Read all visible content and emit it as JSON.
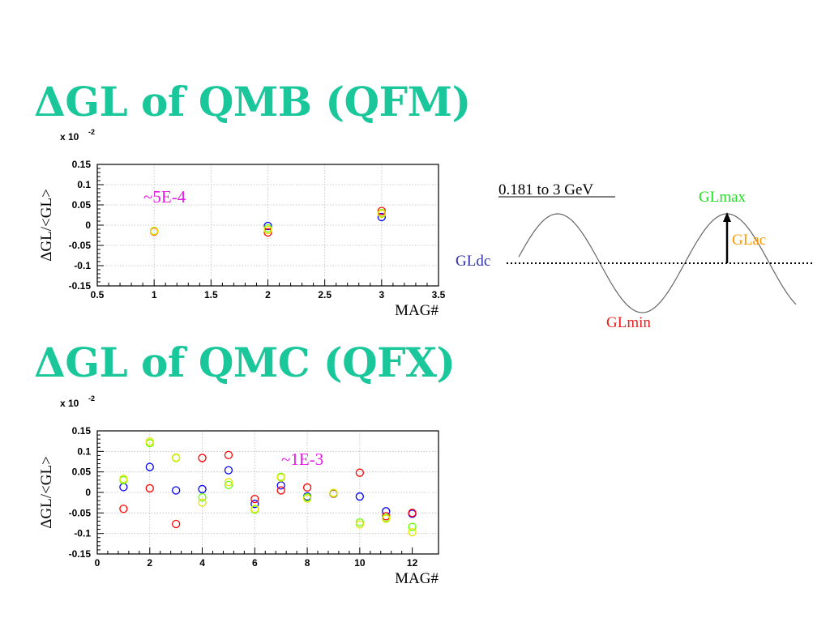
{
  "titles": {
    "top": "ΔGL of QMB (QFM)",
    "bottom": "ΔGL of QMC (QFX)"
  },
  "chart_data": [
    {
      "type": "scatter",
      "multiplier_label": "x 10",
      "multiplier_exponent": "-2",
      "xlabel": "MAG#",
      "ylabel": "ΔGL/<GL>",
      "xlim": [
        0.5,
        3.5
      ],
      "ylim": [
        -0.15,
        0.15
      ],
      "xticks": [
        0.5,
        1,
        1.5,
        2,
        2.5,
        3,
        3.5
      ],
      "xtick_labels": [
        "0.5",
        "1",
        "1.5",
        "2",
        "2.5",
        "3",
        "3.5"
      ],
      "yticks": [
        0.15,
        0.1,
        0.05,
        0,
        -0.05,
        -0.1,
        -0.15
      ],
      "ytick_labels": [
        "0.15",
        "0.1",
        "0.05",
        "0",
        "-0.05",
        "-0.1",
        "-0.15"
      ],
      "grid": true,
      "annotation": "~5E-4",
      "series": [
        {
          "color": "#0000ff",
          "points": [
            [
              1,
              -0.015
            ],
            [
              2,
              -0.002
            ],
            [
              3,
              0.02
            ]
          ]
        },
        {
          "color": "#ff0000",
          "points": [
            [
              1,
              -0.016
            ],
            [
              2,
              -0.018
            ],
            [
              3,
              0.035
            ]
          ]
        },
        {
          "color": "#66ff00",
          "points": [
            [
              1,
              -0.014
            ],
            [
              2,
              -0.008
            ],
            [
              3,
              0.03
            ]
          ]
        },
        {
          "color": "#ffd700",
          "points": [
            [
              1,
              -0.015
            ],
            [
              2,
              -0.012
            ],
            [
              3,
              0.028
            ]
          ]
        }
      ]
    },
    {
      "type": "scatter",
      "multiplier_label": "x 10",
      "multiplier_exponent": "-2",
      "xlabel": "MAG#",
      "ylabel": "ΔGL/<GL>",
      "xlim": [
        0,
        13
      ],
      "ylim": [
        -0.15,
        0.15
      ],
      "xticks": [
        0,
        2,
        4,
        6,
        8,
        10,
        12
      ],
      "xtick_labels": [
        "0",
        "2",
        "4",
        "6",
        "8",
        "10",
        "12"
      ],
      "yticks": [
        0.15,
        0.1,
        0.05,
        0,
        -0.05,
        -0.1,
        -0.15
      ],
      "ytick_labels": [
        "0.15",
        "0.1",
        "0.05",
        "0",
        "-0.05",
        "-0.1",
        "-0.15"
      ],
      "grid": true,
      "annotation": "~1E-3",
      "series": [
        {
          "color": "#0000ff",
          "points": [
            [
              1,
              0.013
            ],
            [
              2,
              0.062
            ],
            [
              3,
              0.005
            ],
            [
              4,
              0.008
            ],
            [
              5,
              0.054
            ],
            [
              6,
              -0.028
            ],
            [
              7,
              0.017
            ],
            [
              8,
              -0.01
            ],
            [
              9,
              -0.003
            ],
            [
              10,
              -0.01
            ],
            [
              11,
              -0.046
            ],
            [
              12,
              -0.052
            ]
          ]
        },
        {
          "color": "#ff0000",
          "points": [
            [
              1,
              -0.04
            ],
            [
              2,
              0.01
            ],
            [
              3,
              -0.077
            ],
            [
              4,
              0.084
            ],
            [
              5,
              0.091
            ],
            [
              6,
              -0.016
            ],
            [
              7,
              0.005
            ],
            [
              8,
              0.012
            ],
            [
              9,
              -0.003
            ],
            [
              10,
              0.048
            ],
            [
              11,
              -0.058
            ],
            [
              12,
              -0.05
            ]
          ]
        },
        {
          "color": "#66ff00",
          "points": [
            [
              1,
              0.03
            ],
            [
              2,
              0.12
            ],
            [
              3,
              0.084
            ],
            [
              4,
              -0.012
            ],
            [
              5,
              0.018
            ],
            [
              6,
              -0.042
            ],
            [
              7,
              0.038
            ],
            [
              8,
              -0.012
            ],
            [
              9,
              -0.002
            ],
            [
              10,
              -0.073
            ],
            [
              11,
              -0.062
            ],
            [
              12,
              -0.084
            ]
          ]
        },
        {
          "color": "#e6e600",
          "points": [
            [
              1,
              0.033
            ],
            [
              2,
              0.124
            ],
            [
              3,
              0.085
            ],
            [
              4,
              -0.025
            ],
            [
              5,
              0.025
            ],
            [
              6,
              -0.04
            ],
            [
              7,
              0.036
            ],
            [
              8,
              -0.015
            ],
            [
              9,
              -0.001
            ],
            [
              10,
              -0.078
            ],
            [
              11,
              -0.064
            ],
            [
              12,
              -0.097
            ]
          ]
        }
      ]
    }
  ],
  "diagram": {
    "energy_label": "0.181 to 3 GeV",
    "gldc_label": "GLdc",
    "glmax_label": "GLmax",
    "glac_label": "GLac",
    "glmin_label": "GLmin",
    "colors": {
      "gldc": "#3333aa",
      "glmax": "#22dd22",
      "glac": "#ff9900",
      "glmin": "#e62020"
    }
  }
}
